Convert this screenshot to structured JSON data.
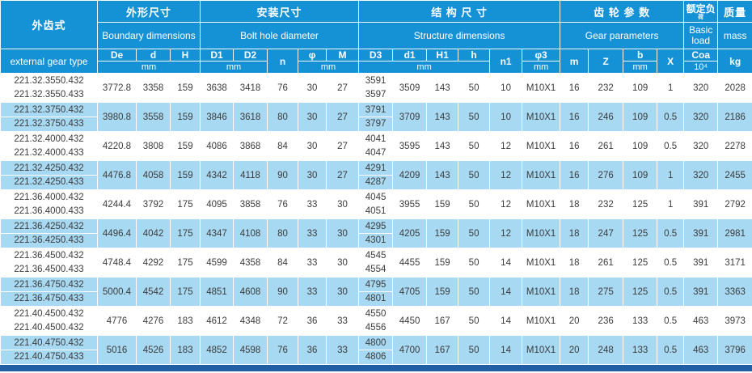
{
  "table": {
    "header": {
      "type_group": {
        "cn": "外齿式",
        "en": "external gear type"
      },
      "groups": {
        "boundary": {
          "cn": "外形尺寸",
          "en": "Boundary dimensions"
        },
        "bolt": {
          "cn": "安装尺寸",
          "en": "Bolt hole diameter"
        },
        "structure": {
          "cn": "结 构 尺 寸",
          "en": "Structure dimensions"
        },
        "gear": {
          "cn": "齿 轮 参 数",
          "en": "Gear parameters"
        },
        "load": {
          "cn_line1": "额定负",
          "cn_line2": "荷",
          "en": "Basic load"
        },
        "mass": {
          "cn": "质量",
          "en": "mass"
        }
      },
      "cols": {
        "De": "De",
        "d": "d",
        "H": "H",
        "D1": "D1",
        "D2": "D2",
        "n": "n",
        "phi": "φ",
        "M": "M",
        "D3": "D3",
        "d1": "d1",
        "H1": "H1",
        "h": "h",
        "n1": "n1",
        "phi3": "φ3",
        "m": "m",
        "Z": "Z",
        "b": "b",
        "X": "X",
        "Coa": "Coa",
        "Coa_unit": "10⁴",
        "kg": "kg"
      },
      "unit_mm": "mm"
    },
    "colors": {
      "header_blue": "#1591d6",
      "row_light_blue": "#a8d9f2",
      "row_white": "#ffffff",
      "bottom_bar": "#215fa5",
      "data_text": "#3c3c3c"
    },
    "rows": [
      {
        "type1": "221.32.3550.432",
        "type2": "221.32.3550.433",
        "De": "3772.8",
        "d": "3358",
        "H": "159",
        "D1": "3638",
        "D2": "3418",
        "n": "76",
        "phi": "30",
        "M": "27",
        "D3a": "3591",
        "D3b": "3597",
        "d1": "3509",
        "H1": "143",
        "h": "50",
        "n1": "10",
        "phi3": "M10X1",
        "m": "16",
        "Z": "232",
        "b": "109",
        "X": "1",
        "Coa": "320",
        "mass": "2028"
      },
      {
        "type1": "221.32.3750.432",
        "type2": "221.32.3750.433",
        "De": "3980.8",
        "d": "3558",
        "H": "159",
        "D1": "3846",
        "D2": "3618",
        "n": "80",
        "phi": "30",
        "M": "27",
        "D3a": "3791",
        "D3b": "3797",
        "d1": "3709",
        "H1": "143",
        "h": "50",
        "n1": "10",
        "phi3": "M10X1",
        "m": "16",
        "Z": "246",
        "b": "109",
        "X": "0.5",
        "Coa": "320",
        "mass": "2186"
      },
      {
        "type1": "221.32.4000.432",
        "type2": "221.32.4000.433",
        "De": "4220.8",
        "d": "3808",
        "H": "159",
        "D1": "4086",
        "D2": "3868",
        "n": "84",
        "phi": "30",
        "M": "27",
        "D3a": "4041",
        "D3b": "4047",
        "d1": "3595",
        "H1": "143",
        "h": "50",
        "n1": "12",
        "phi3": "M10X1",
        "m": "16",
        "Z": "261",
        "b": "109",
        "X": "0.5",
        "Coa": "320",
        "mass": "2278"
      },
      {
        "type1": "221.32.4250.432",
        "type2": "221.32.4250.433",
        "De": "4476.8",
        "d": "4058",
        "H": "159",
        "D1": "4342",
        "D2": "4118",
        "n": "90",
        "phi": "30",
        "M": "27",
        "D3a": "4291",
        "D3b": "4287",
        "d1": "4209",
        "H1": "143",
        "h": "50",
        "n1": "12",
        "phi3": "M10X1",
        "m": "16",
        "Z": "276",
        "b": "109",
        "X": "1",
        "Coa": "320",
        "mass": "2455"
      },
      {
        "type1": "221.36.4000.432",
        "type2": "221.36.4000.433",
        "De": "4244.4",
        "d": "3792",
        "H": "175",
        "D1": "4095",
        "D2": "3858",
        "n": "76",
        "phi": "33",
        "M": "30",
        "D3a": "4045",
        "D3b": "4051",
        "d1": "3955",
        "H1": "159",
        "h": "50",
        "n1": "12",
        "phi3": "M10X1",
        "m": "18",
        "Z": "232",
        "b": "125",
        "X": "1",
        "Coa": "391",
        "mass": "2792"
      },
      {
        "type1": "221.36.4250.432",
        "type2": "221.36.4250.433",
        "De": "4496.4",
        "d": "4042",
        "H": "175",
        "D1": "4347",
        "D2": "4108",
        "n": "80",
        "phi": "33",
        "M": "30",
        "D3a": "4295",
        "D3b": "4301",
        "d1": "4205",
        "H1": "159",
        "h": "50",
        "n1": "12",
        "phi3": "M10X1",
        "m": "18",
        "Z": "247",
        "b": "125",
        "X": "0.5",
        "Coa": "391",
        "mass": "2981"
      },
      {
        "type1": "221.36.4500.432",
        "type2": "221.36.4500.433",
        "De": "4748.4",
        "d": "4292",
        "H": "175",
        "D1": "4599",
        "D2": "4358",
        "n": "84",
        "phi": "33",
        "M": "30",
        "D3a": "4545",
        "D3b": "4554",
        "d1": "4455",
        "H1": "159",
        "h": "50",
        "n1": "14",
        "phi3": "M10X1",
        "m": "18",
        "Z": "261",
        "b": "125",
        "X": "0.5",
        "Coa": "391",
        "mass": "3171"
      },
      {
        "type1": "221.36.4750.432",
        "type2": "221.36.4750.433",
        "De": "5000.4",
        "d": "4542",
        "H": "175",
        "D1": "4851",
        "D2": "4608",
        "n": "90",
        "phi": "33",
        "M": "30",
        "D3a": "4795",
        "D3b": "4801",
        "d1": "4705",
        "H1": "159",
        "h": "50",
        "n1": "14",
        "phi3": "M10X1",
        "m": "18",
        "Z": "275",
        "b": "125",
        "X": "0.5",
        "Coa": "391",
        "mass": "3363"
      },
      {
        "type1": "221.40.4500.432",
        "type2": "221.40.4500.432",
        "De": "4776",
        "d": "4276",
        "H": "183",
        "D1": "4612",
        "D2": "4348",
        "n": "72",
        "phi": "36",
        "M": "33",
        "D3a": "4550",
        "D3b": "4556",
        "d1": "4450",
        "H1": "167",
        "h": "50",
        "n1": "14",
        "phi3": "M10X1",
        "m": "20",
        "Z": "236",
        "b": "133",
        "X": "0.5",
        "Coa": "463",
        "mass": "3973"
      },
      {
        "type1": "221.40.4750.432",
        "type2": "221.40.4750.433",
        "De": "5016",
        "d": "4526",
        "H": "183",
        "D1": "4852",
        "D2": "4598",
        "n": "76",
        "phi": "36",
        "M": "33",
        "D3a": "4800",
        "D3b": "4806",
        "d1": "4700",
        "H1": "167",
        "h": "50",
        "n1": "14",
        "phi3": "M10X1",
        "m": "20",
        "Z": "248",
        "b": "133",
        "X": "0.5",
        "Coa": "463",
        "mass": "3796"
      }
    ]
  }
}
